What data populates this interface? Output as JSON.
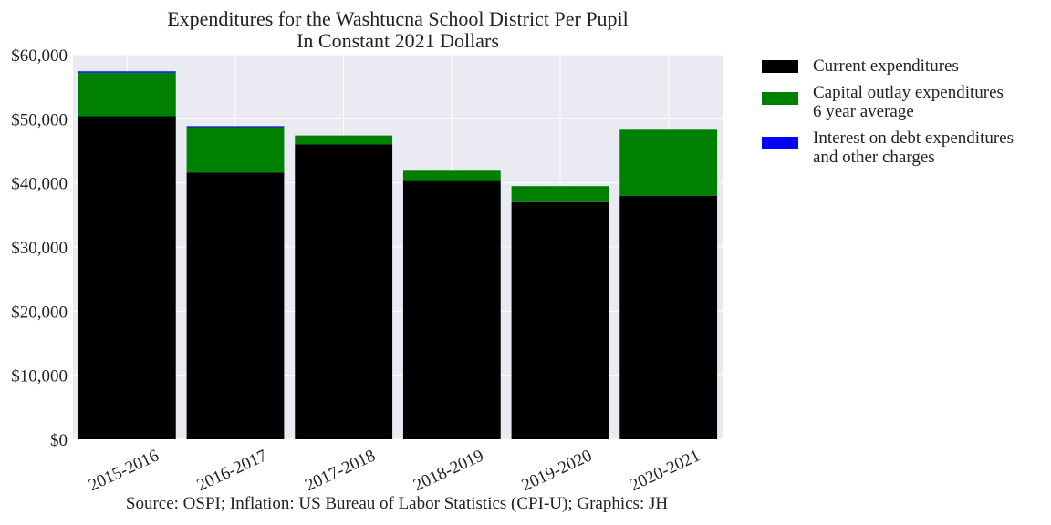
{
  "chart_data": {
    "type": "bar",
    "stacked": true,
    "title": "Expenditures for the Washtucna School District Per Pupil",
    "subtitle": "In Constant 2021 Dollars",
    "categories": [
      "2015-2016",
      "2016-2017",
      "2017-2018",
      "2018-2019",
      "2019-2020",
      "2020-2021"
    ],
    "series": [
      {
        "name": "Current expenditures",
        "color": "#000000",
        "values": [
          50400,
          41600,
          46000,
          40300,
          37000,
          38000
        ]
      },
      {
        "name": "Capital outlay expenditures\n6 year average",
        "color": "#008000",
        "values": [
          6800,
          7100,
          1400,
          1600,
          2500,
          10300
        ]
      },
      {
        "name": "Interest on debt expenditures\nand other charges",
        "color": "#0000ff",
        "values": [
          200,
          150,
          0,
          0,
          0,
          0
        ]
      }
    ],
    "ylim": [
      0,
      60000
    ],
    "yticks": [
      0,
      10000,
      20000,
      30000,
      40000,
      50000,
      60000
    ],
    "ytick_labels": [
      "$0",
      "$10,000",
      "$20,000",
      "$30,000",
      "$40,000",
      "$50,000",
      "$60,000"
    ],
    "grid": true,
    "background": "#eaeaf2",
    "legend_position": "outside-right"
  },
  "legend": {
    "items": [
      {
        "lines": [
          "Current expenditures"
        ],
        "color": "#000000"
      },
      {
        "lines": [
          "Capital outlay expenditures",
          "6 year average"
        ],
        "color": "#008000"
      },
      {
        "lines": [
          "Interest on debt expenditures",
          "and other charges"
        ],
        "color": "#0000ff"
      }
    ]
  },
  "source_note": "Source: OSPI; Inflation: US Bureau of Labor Statistics (CPI-U); Graphics: JH"
}
